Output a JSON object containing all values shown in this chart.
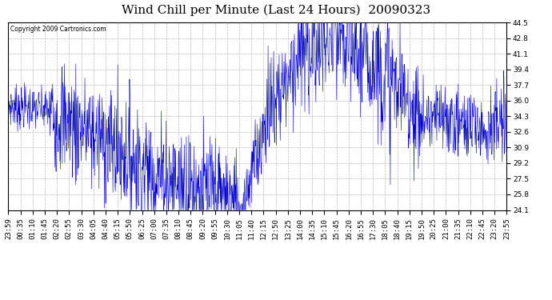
{
  "title": "Wind Chill per Minute (Last 24 Hours)  20090323",
  "copyright": "Copyright 2009 Cartronics.com",
  "line_color": "#0000CC",
  "background_color": "#ffffff",
  "grid_color": "#bbbbbb",
  "ylim": [
    24.1,
    44.5
  ],
  "yticks": [
    24.1,
    25.8,
    27.5,
    29.2,
    30.9,
    32.6,
    34.3,
    36.0,
    37.7,
    39.4,
    41.1,
    42.8,
    44.5
  ],
  "title_fontsize": 11,
  "tick_fontsize": 6.5,
  "num_points": 1440,
  "xtick_labels": [
    "23:59",
    "00:35",
    "01:10",
    "01:45",
    "02:20",
    "02:55",
    "03:30",
    "04:05",
    "04:40",
    "05:15",
    "05:50",
    "06:25",
    "07:00",
    "07:35",
    "08:10",
    "08:45",
    "09:20",
    "09:55",
    "10:30",
    "11:05",
    "11:40",
    "12:15",
    "12:50",
    "13:25",
    "14:00",
    "14:35",
    "15:10",
    "15:45",
    "16:20",
    "16:55",
    "17:30",
    "18:05",
    "18:40",
    "19:15",
    "19:50",
    "20:25",
    "21:00",
    "21:35",
    "22:10",
    "22:45",
    "23:20",
    "23:55"
  ]
}
